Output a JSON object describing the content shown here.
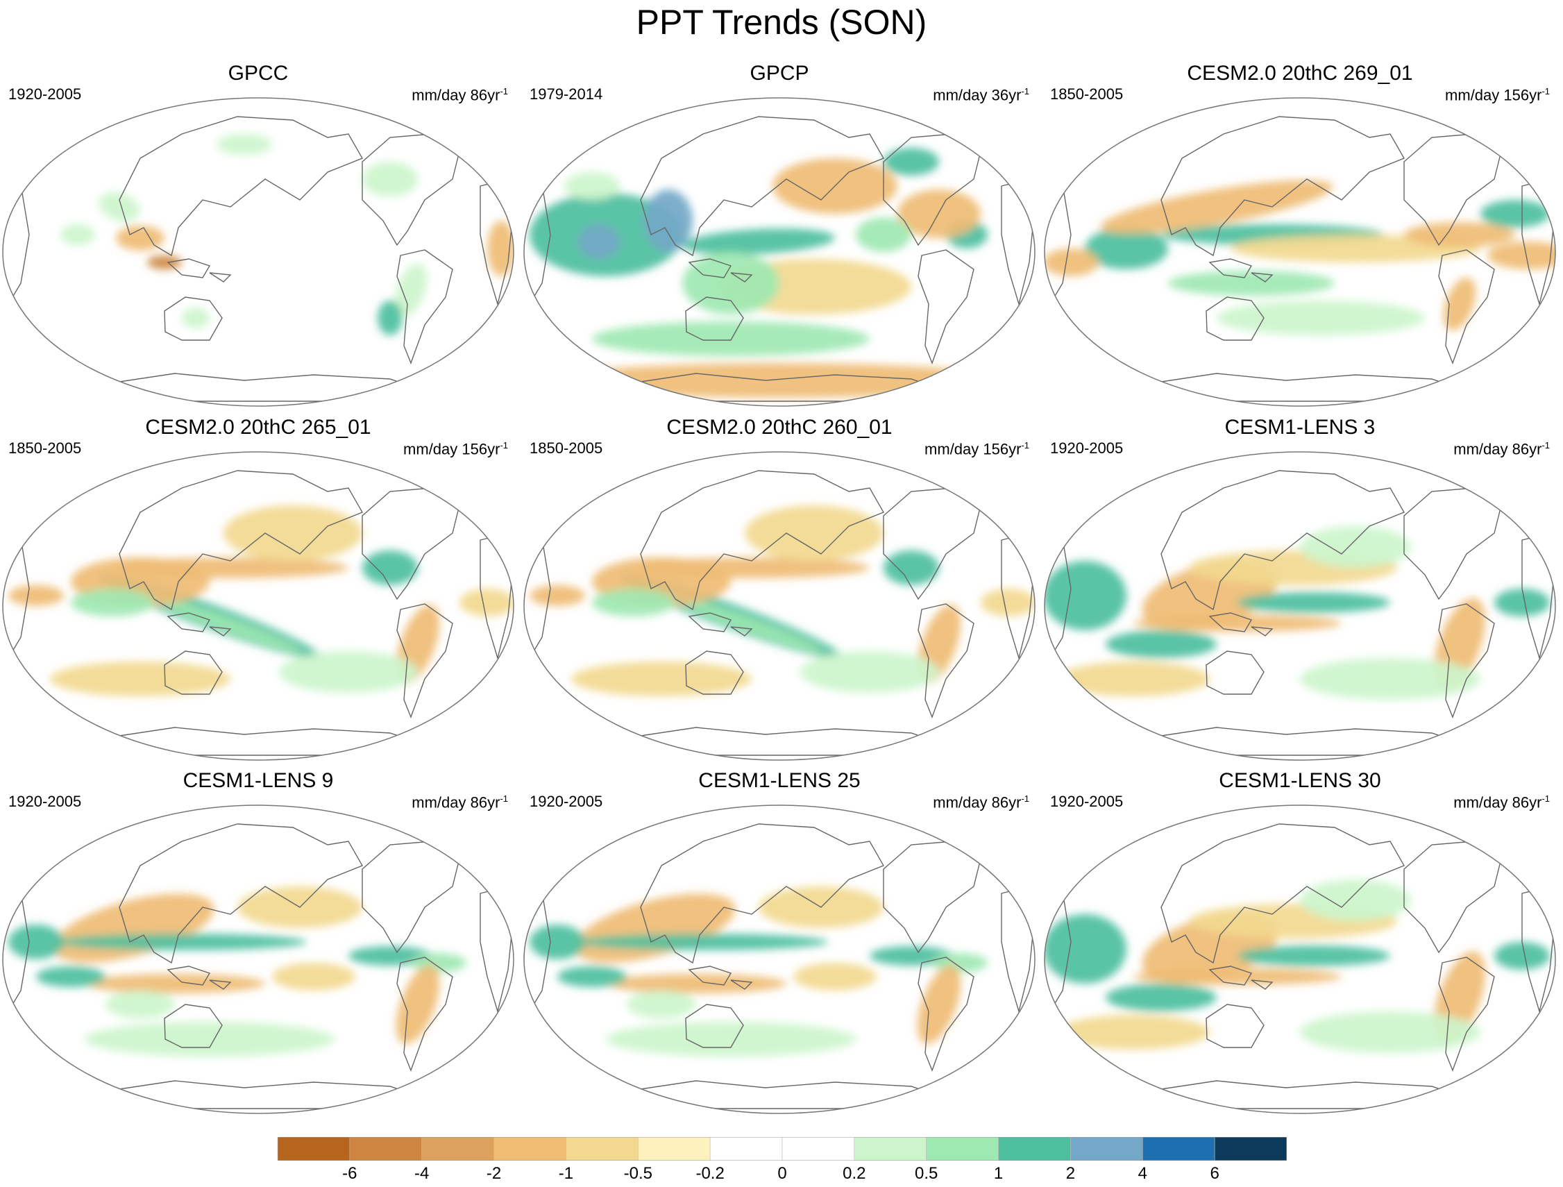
{
  "title": "PPT Trends (SON)",
  "panels": [
    {
      "title": "GPCC",
      "period": "1920-2005",
      "units": "mm/day 86yr",
      "units_exp": "-1",
      "pattern": "obs-land"
    },
    {
      "title": "GPCP",
      "period": "1979-2014",
      "units": "mm/day 36yr",
      "units_exp": "-1",
      "pattern": "obs-global"
    },
    {
      "title": "CESM2.0 20thC 269_01",
      "period": "1850-2005",
      "units": "mm/day 156yr",
      "units_exp": "-1",
      "pattern": "model-a"
    },
    {
      "title": "CESM2.0 20thC 265_01",
      "period": "1850-2005",
      "units": "mm/day 156yr",
      "units_exp": "-1",
      "pattern": "model-b"
    },
    {
      "title": "CESM2.0 20thC 260_01",
      "period": "1850-2005",
      "units": "mm/day 156yr",
      "units_exp": "-1",
      "pattern": "model-b"
    },
    {
      "title": "CESM1-LENS 3",
      "period": "1920-2005",
      "units": "mm/day 86yr",
      "units_exp": "-1",
      "pattern": "model-c"
    },
    {
      "title": "CESM1-LENS 9",
      "period": "1920-2005",
      "units": "mm/day 86yr",
      "units_exp": "-1",
      "pattern": "model-d"
    },
    {
      "title": "CESM1-LENS 25",
      "period": "1920-2005",
      "units": "mm/day 86yr",
      "units_exp": "-1",
      "pattern": "model-d"
    },
    {
      "title": "CESM1-LENS 30",
      "period": "1920-2005",
      "units": "mm/day 86yr",
      "units_exp": "-1",
      "pattern": "model-c"
    }
  ],
  "colorbar": {
    "colors": [
      "#b5651d",
      "#cd853f",
      "#dda15e",
      "#efbc74",
      "#f2d98f",
      "#fdf2bd",
      "#ffffff",
      "#ffffff",
      "#ccf5cc",
      "#9ee8b2",
      "#4dbf9e",
      "#73a8c8",
      "#1e6fb0",
      "#0b3a5a"
    ],
    "labels": [
      "-6",
      "-4",
      "-2",
      "-1",
      "-0.5",
      "-0.2",
      "0",
      "0.2",
      "0.5",
      "1",
      "2",
      "4",
      "6"
    ]
  },
  "colors": {
    "coast": "#666666",
    "border": "#777777"
  }
}
